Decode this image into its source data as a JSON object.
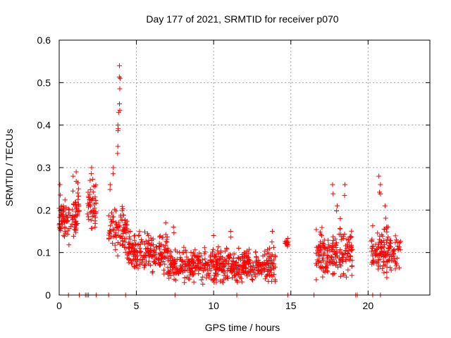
{
  "chart_data": {
    "type": "scatter",
    "title": "Day 177 of 2021, SRMTID for receiver p070",
    "xlabel": "GPS time / hours",
    "ylabel": "SRMTID / TECUs",
    "xlim": [
      0,
      24
    ],
    "ylim": [
      0,
      0.6
    ],
    "xticks": [
      0,
      5,
      10,
      15,
      20
    ],
    "yticks": [
      0,
      0.1,
      0.2,
      0.3,
      0.4,
      0.5,
      0.6
    ],
    "xtick_labels": [
      "0",
      "5",
      "10",
      "15",
      "20"
    ],
    "ytick_labels": [
      "0",
      "0.1",
      "0.2",
      "0.3",
      "0.4",
      "0.5",
      "0.6"
    ],
    "grid": true,
    "marker": "+",
    "color": "#ff0000",
    "series": [
      {
        "name": "SRMTID",
        "segments": [
          {
            "x_start": 0.0,
            "x_end": 1.1,
            "base": 0.17,
            "spread": 0.05,
            "peaks": [
              [
                0.05,
                0.26
              ],
              [
                0.3,
                0.2
              ],
              [
                0.9,
                0.28
              ]
            ]
          },
          {
            "x_start": 1.0,
            "x_end": 1.3,
            "base": 0.2,
            "spread": 0.05,
            "peaks": [
              [
                1.1,
                0.29
              ],
              [
                1.25,
                0.25
              ]
            ]
          },
          {
            "x_start": 1.8,
            "x_end": 2.4,
            "base": 0.2,
            "spread": 0.06,
            "peaks": [
              [
                2.1,
                0.3
              ],
              [
                2.0,
                0.27
              ]
            ]
          },
          {
            "x_start": 3.2,
            "x_end": 4.4,
            "base": 0.16,
            "spread": 0.06,
            "peaks": [
              [
                3.9,
                0.54
              ],
              [
                3.95,
                0.51
              ],
              [
                3.9,
                0.45
              ],
              [
                3.85,
                0.43
              ],
              [
                3.8,
                0.4
              ],
              [
                3.8,
                0.35
              ],
              [
                3.5,
                0.3
              ],
              [
                3.3,
                0.26
              ]
            ]
          },
          {
            "x_start": 4.4,
            "x_end": 7.0,
            "base": 0.1,
            "spread": 0.04,
            "peaks": [
              [
                4.6,
                0.15
              ],
              [
                6.9,
                0.17
              ]
            ]
          },
          {
            "x_start": 7.0,
            "x_end": 14.0,
            "base": 0.07,
            "spread": 0.035,
            "peaks": [
              [
                7.4,
                0.16
              ],
              [
                10.0,
                0.14
              ],
              [
                11.1,
                0.15
              ],
              [
                13.8,
                0.15
              ]
            ]
          },
          {
            "x_start": 14.6,
            "x_end": 14.8,
            "base": 0.125,
            "spread": 0.01,
            "peaks": []
          },
          {
            "x_start": 16.6,
            "x_end": 19.0,
            "base": 0.1,
            "spread": 0.05,
            "peaks": [
              [
                17.7,
                0.26
              ],
              [
                18.5,
                0.26
              ],
              [
                18.0,
                0.21
              ],
              [
                18.2,
                0.18
              ]
            ]
          },
          {
            "x_start": 20.2,
            "x_end": 22.1,
            "base": 0.1,
            "spread": 0.05,
            "peaks": [
              [
                20.7,
                0.28
              ],
              [
                20.8,
                0.26
              ],
              [
                21.1,
                0.21
              ],
              [
                21.2,
                0.16
              ]
            ]
          }
        ],
        "zero_markers_x": [
          0.6,
          1.3,
          1.7,
          1.8,
          1.9,
          2.4,
          3.2,
          4.3,
          7.5,
          11.5,
          14.8,
          16.5,
          19.2,
          19.3,
          20.3,
          20.8
        ]
      }
    ]
  }
}
